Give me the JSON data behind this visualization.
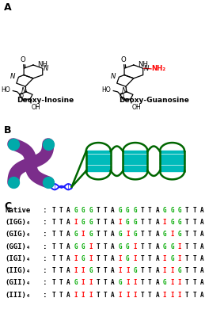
{
  "panel_A_label": "A",
  "panel_B_label": "B",
  "panel_C_label": "C",
  "deoxy_inosine_label": "Deoxy-Inosine",
  "deoxy_guanosine_label": "Deoxy-Guanosine",
  "sequences": [
    {
      "label": "Native",
      "parts": [
        {
          "text": "TTA",
          "color": "#000000"
        },
        {
          "text": "GGG",
          "color": "#00aa00"
        },
        {
          "text": "TTA",
          "color": "#000000"
        },
        {
          "text": "GGG",
          "color": "#00aa00"
        },
        {
          "text": "TTA",
          "color": "#000000"
        },
        {
          "text": "GGG",
          "color": "#00aa00"
        },
        {
          "text": "TTA",
          "color": "#000000"
        },
        {
          "text": "GGG",
          "color": "#00aa00"
        }
      ]
    },
    {
      "label": "(IGG)₄",
      "parts": [
        {
          "text": "TTA",
          "color": "#000000"
        },
        {
          "text": "I",
          "color": "#ff0000"
        },
        {
          "text": "GG",
          "color": "#00aa00"
        },
        {
          "text": "TTA",
          "color": "#000000"
        },
        {
          "text": "I",
          "color": "#ff0000"
        },
        {
          "text": "GG",
          "color": "#00aa00"
        },
        {
          "text": "TTA",
          "color": "#000000"
        },
        {
          "text": "I",
          "color": "#ff0000"
        },
        {
          "text": "GG",
          "color": "#00aa00"
        },
        {
          "text": "TTA",
          "color": "#000000"
        },
        {
          "text": "I",
          "color": "#ff0000"
        },
        {
          "text": "GG",
          "color": "#00aa00"
        }
      ]
    },
    {
      "label": "(GIG)₄",
      "parts": [
        {
          "text": "TTA",
          "color": "#000000"
        },
        {
          "text": "G",
          "color": "#00aa00"
        },
        {
          "text": "I",
          "color": "#ff0000"
        },
        {
          "text": "G",
          "color": "#00aa00"
        },
        {
          "text": "TTA",
          "color": "#000000"
        },
        {
          "text": "G",
          "color": "#00aa00"
        },
        {
          "text": "I",
          "color": "#ff0000"
        },
        {
          "text": "G",
          "color": "#00aa00"
        },
        {
          "text": "TTA",
          "color": "#000000"
        },
        {
          "text": "G",
          "color": "#00aa00"
        },
        {
          "text": "I",
          "color": "#ff0000"
        },
        {
          "text": "G",
          "color": "#00aa00"
        },
        {
          "text": "TTA",
          "color": "#000000"
        },
        {
          "text": "G",
          "color": "#00aa00"
        },
        {
          "text": "I",
          "color": "#ff0000"
        },
        {
          "text": "G",
          "color": "#00aa00"
        }
      ]
    },
    {
      "label": "(GGI)₄",
      "parts": [
        {
          "text": "TTA",
          "color": "#000000"
        },
        {
          "text": "GG",
          "color": "#00aa00"
        },
        {
          "text": "I",
          "color": "#ff0000"
        },
        {
          "text": "TTA",
          "color": "#000000"
        },
        {
          "text": "GG",
          "color": "#00aa00"
        },
        {
          "text": "I",
          "color": "#ff0000"
        },
        {
          "text": "TTA",
          "color": "#000000"
        },
        {
          "text": "GG",
          "color": "#00aa00"
        },
        {
          "text": "I",
          "color": "#ff0000"
        },
        {
          "text": "TTA",
          "color": "#000000"
        },
        {
          "text": "GG",
          "color": "#00aa00"
        },
        {
          "text": "I",
          "color": "#ff0000"
        }
      ]
    },
    {
      "label": "(IGI)₄",
      "parts": [
        {
          "text": "TTA",
          "color": "#000000"
        },
        {
          "text": "I",
          "color": "#ff0000"
        },
        {
          "text": "G",
          "color": "#00aa00"
        },
        {
          "text": "I",
          "color": "#ff0000"
        },
        {
          "text": "TTA",
          "color": "#000000"
        },
        {
          "text": "I",
          "color": "#ff0000"
        },
        {
          "text": "G",
          "color": "#00aa00"
        },
        {
          "text": "I",
          "color": "#ff0000"
        },
        {
          "text": "TTA",
          "color": "#000000"
        },
        {
          "text": "I",
          "color": "#ff0000"
        },
        {
          "text": "G",
          "color": "#00aa00"
        },
        {
          "text": "I",
          "color": "#ff0000"
        },
        {
          "text": "TTA",
          "color": "#000000"
        },
        {
          "text": "I",
          "color": "#ff0000"
        },
        {
          "text": "G",
          "color": "#00aa00"
        },
        {
          "text": "I",
          "color": "#ff0000"
        }
      ]
    },
    {
      "label": "(IIG)₄",
      "parts": [
        {
          "text": "TTA",
          "color": "#000000"
        },
        {
          "text": "II",
          "color": "#ff0000"
        },
        {
          "text": "G",
          "color": "#00aa00"
        },
        {
          "text": "TTA",
          "color": "#000000"
        },
        {
          "text": "II",
          "color": "#ff0000"
        },
        {
          "text": "G",
          "color": "#00aa00"
        },
        {
          "text": "TTA",
          "color": "#000000"
        },
        {
          "text": "II",
          "color": "#ff0000"
        },
        {
          "text": "G",
          "color": "#00aa00"
        },
        {
          "text": "TTA",
          "color": "#000000"
        },
        {
          "text": "II",
          "color": "#ff0000"
        },
        {
          "text": "G",
          "color": "#00aa00"
        }
      ]
    },
    {
      "label": "(GII)₄",
      "parts": [
        {
          "text": "TTA",
          "color": "#000000"
        },
        {
          "text": "G",
          "color": "#00aa00"
        },
        {
          "text": "II",
          "color": "#ff0000"
        },
        {
          "text": "TTA",
          "color": "#000000"
        },
        {
          "text": "G",
          "color": "#00aa00"
        },
        {
          "text": "II",
          "color": "#ff0000"
        },
        {
          "text": "TTA",
          "color": "#000000"
        },
        {
          "text": "G",
          "color": "#00aa00"
        },
        {
          "text": "II",
          "color": "#ff0000"
        },
        {
          "text": "TTA",
          "color": "#000000"
        },
        {
          "text": "G",
          "color": "#00aa00"
        },
        {
          "text": "II",
          "color": "#ff0000"
        }
      ]
    },
    {
      "label": "(III)₄",
      "parts": [
        {
          "text": "TTA",
          "color": "#000000"
        },
        {
          "text": "III",
          "color": "#ff0000"
        },
        {
          "text": "TTA",
          "color": "#000000"
        },
        {
          "text": "III",
          "color": "#ff0000"
        },
        {
          "text": "TTA",
          "color": "#000000"
        },
        {
          "text": "III",
          "color": "#ff0000"
        },
        {
          "text": "TTA",
          "color": "#000000"
        },
        {
          "text": "III",
          "color": "#ff0000"
        }
      ]
    }
  ],
  "background_color": "#ffffff",
  "chromosome_color": "#7b2d8b",
  "telomere_cap_color": "#00aaaa",
  "quadruplex_color": "#006600",
  "quadruplex_fill_color": "#00bbbb",
  "helix_color": "#1a1aff",
  "font_size_seq": 5.5,
  "font_size_label": 6.5,
  "font_size_panel": 9
}
